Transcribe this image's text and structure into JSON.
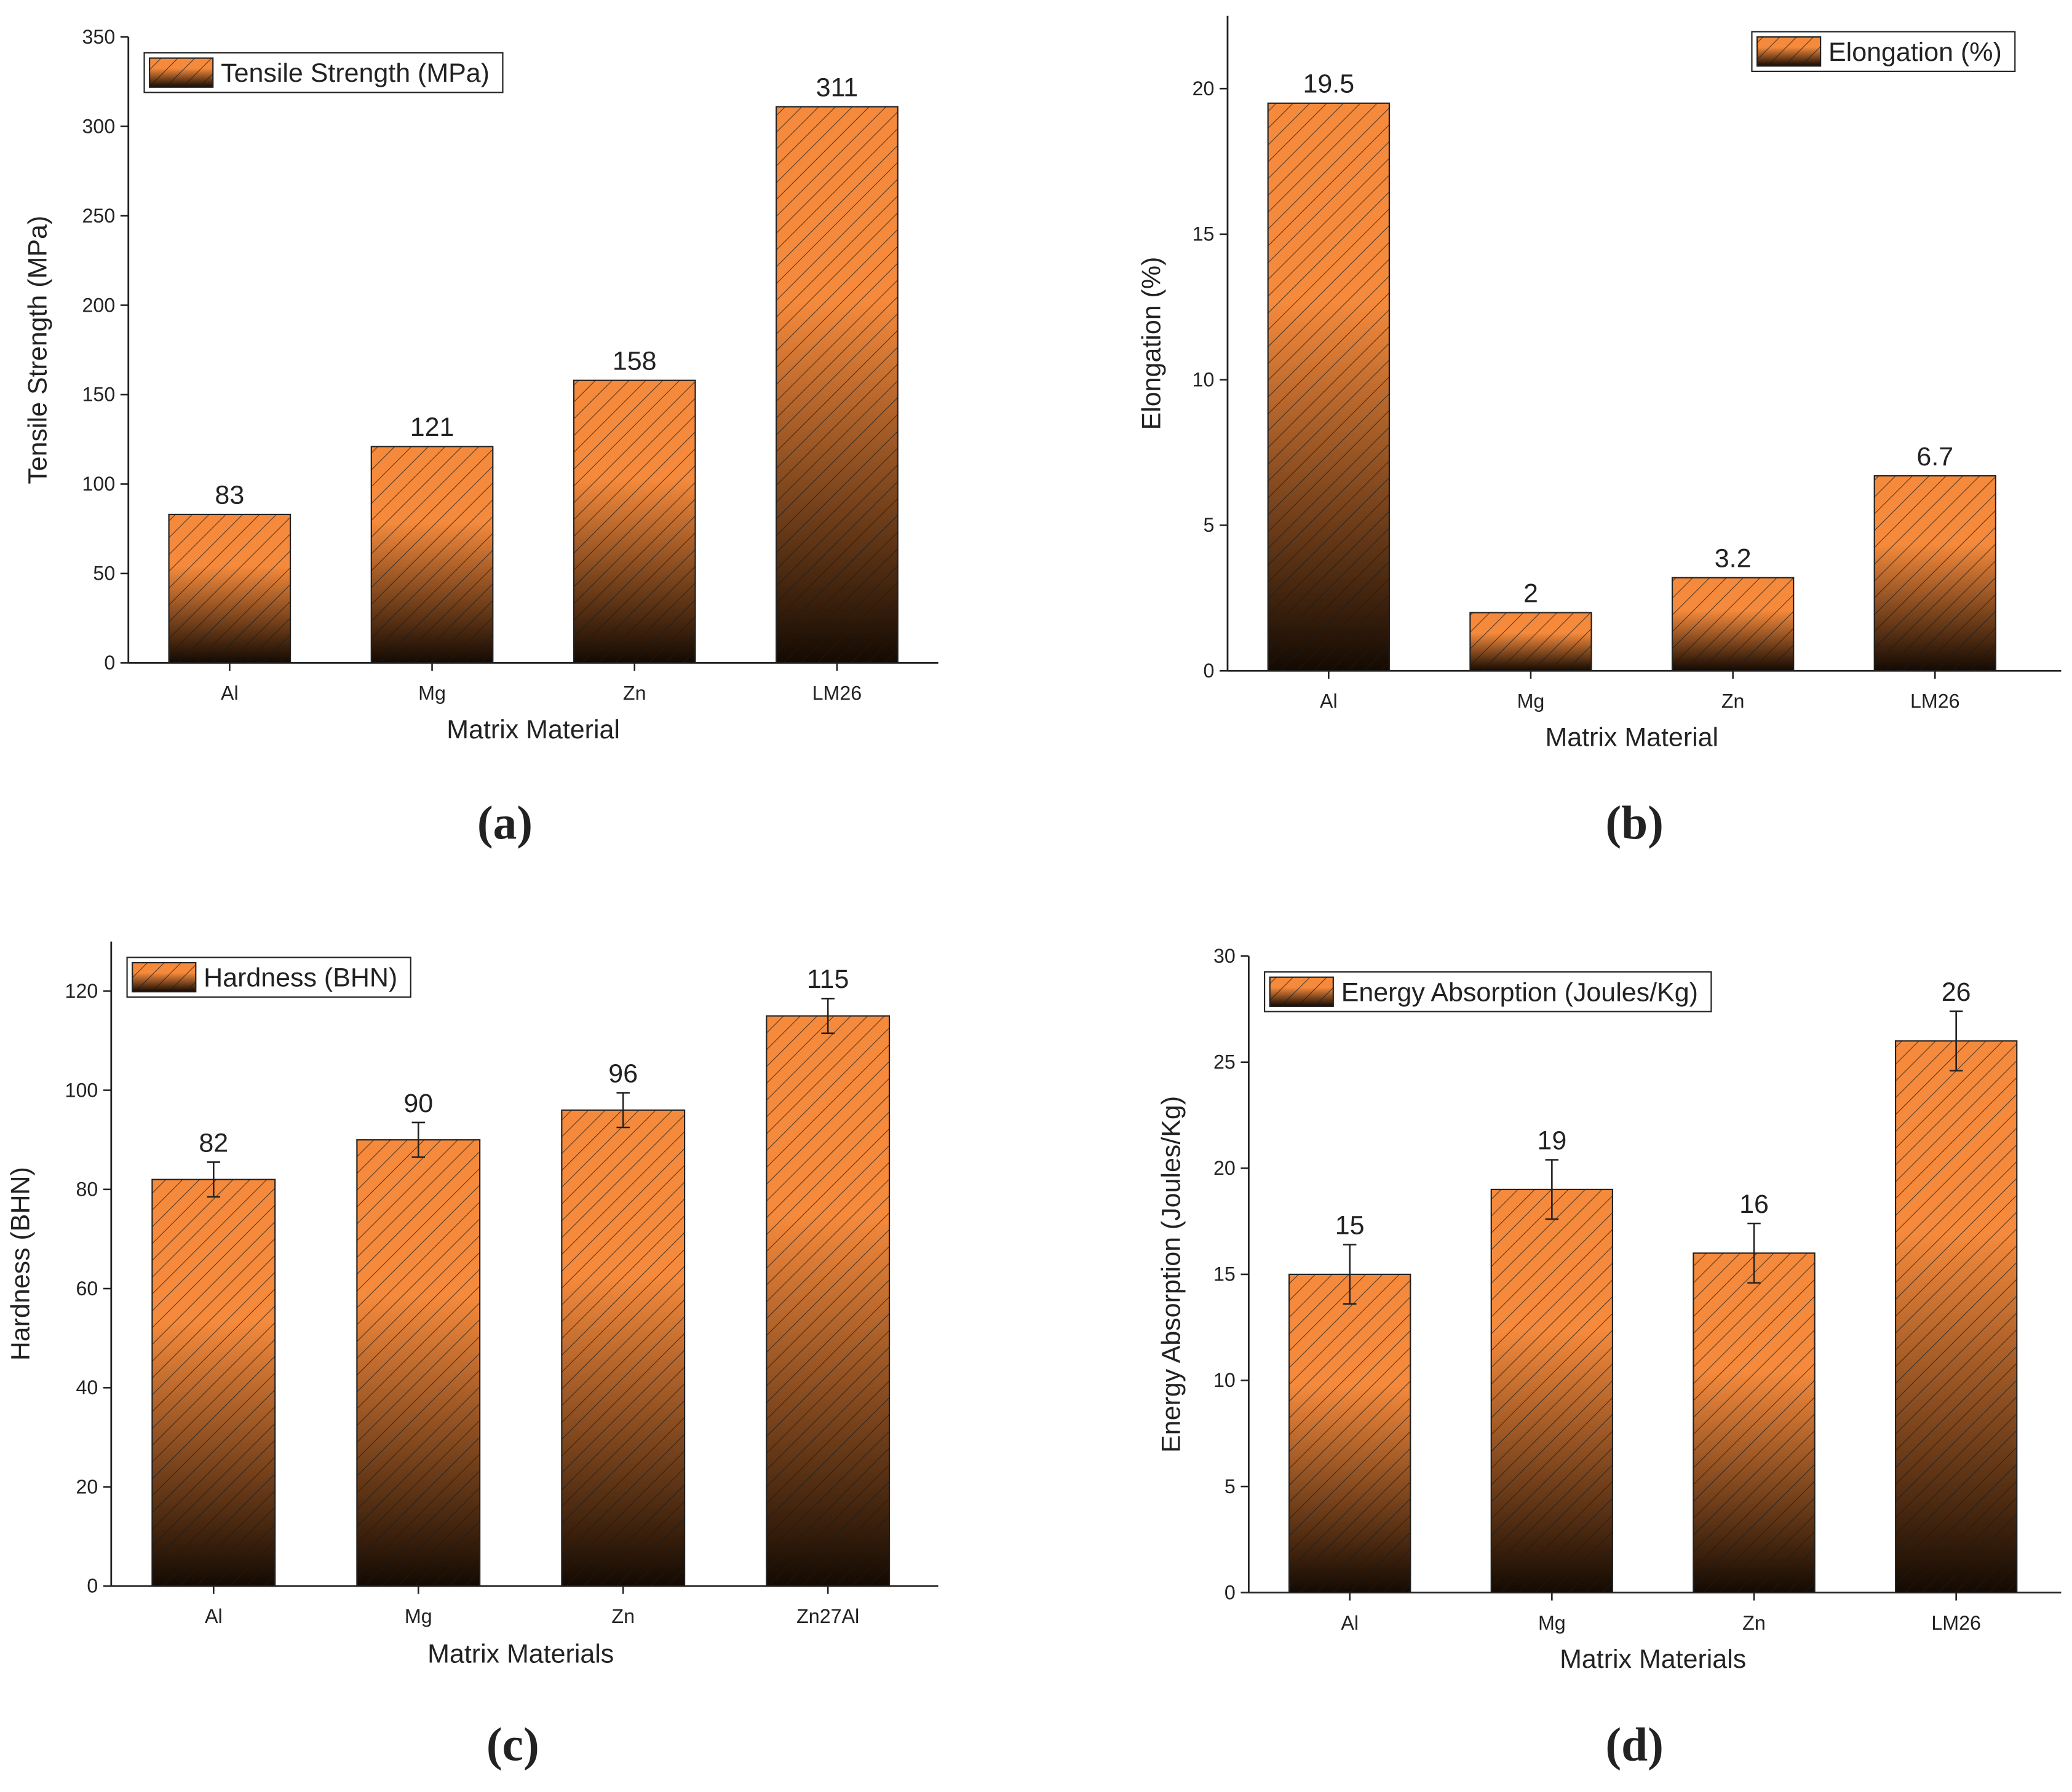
{
  "chart_data": [
    {
      "type": "bar",
      "caption": "(a)",
      "xlabel": "Matrix Material",
      "ylabel": "Tensile Strength (MPa)",
      "categories": [
        "Al",
        "Mg",
        "Zn",
        "LM26"
      ],
      "legend_position": "upper left",
      "series": [
        {
          "name": "Tensile Strength (MPa)",
          "color": "#f58a3c",
          "values": [
            83,
            121,
            158,
            311
          ]
        }
      ],
      "ylim": [
        0,
        350
      ],
      "yticks": [
        0,
        50,
        100,
        150,
        200,
        250,
        300,
        350
      ]
    },
    {
      "type": "bar",
      "caption": "(b)",
      "xlabel": "Matrix Material",
      "ylabel": "Elongation (%)",
      "categories": [
        "Al",
        "Mg",
        "Zn",
        "LM26"
      ],
      "legend_position": "upper right",
      "series": [
        {
          "name": "Elongation (%)",
          "color": "#f58a3c",
          "values": [
            19.5,
            2,
            3.2,
            6.7
          ]
        }
      ],
      "ylim": [
        0,
        22.5
      ],
      "yticks": [
        0,
        5,
        10,
        15,
        20
      ]
    },
    {
      "type": "bar",
      "caption": "(c)",
      "xlabel": "Matrix Materials",
      "ylabel": "Hardness (BHN)",
      "categories": [
        "Al",
        "Mg",
        "Zn",
        "Zn27Al"
      ],
      "legend_position": "upper left",
      "series": [
        {
          "name": "Hardness (BHN)",
          "color": "#f58a3c",
          "values": [
            82,
            90,
            96,
            115
          ],
          "errors": [
            3.5,
            3.5,
            3.5,
            3.5
          ]
        }
      ],
      "ylim": [
        0,
        130
      ],
      "yticks": [
        0,
        20,
        40,
        60,
        80,
        100,
        120
      ]
    },
    {
      "type": "bar",
      "caption": "(d)",
      "xlabel": "Matrix Materials",
      "ylabel": "Energy Absorption (Joules/Kg)",
      "categories": [
        "Al",
        "Mg",
        "Zn",
        "LM26"
      ],
      "legend_position": "upper left",
      "series": [
        {
          "name": "Energy Absorption (Joules/Kg)",
          "color": "#f58a3c",
          "values": [
            15,
            19,
            16,
            26
          ],
          "errors": [
            1.4,
            1.4,
            1.4,
            1.4
          ]
        }
      ],
      "ylim": [
        0,
        30
      ],
      "yticks": [
        0,
        5,
        10,
        15,
        20,
        25,
        30
      ]
    }
  ]
}
